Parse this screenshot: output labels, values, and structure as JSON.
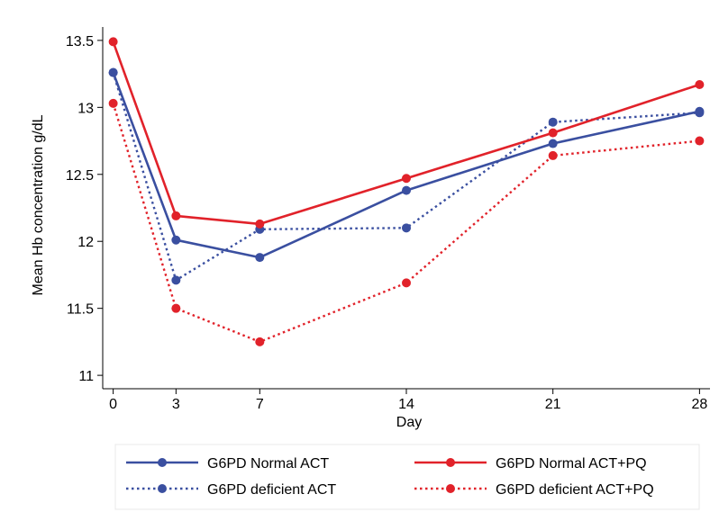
{
  "chart_data": {
    "type": "line",
    "xlabel": "Day",
    "ylabel": "Mean Hb concentration g/dL",
    "x": [
      0,
      3,
      7,
      14,
      21,
      28
    ],
    "xlim": [
      -0.5,
      28.5
    ],
    "ylim": [
      10.9,
      13.6
    ],
    "xticks": [
      "0",
      "3",
      "7",
      "14",
      "21",
      "28"
    ],
    "yticks": [
      "11",
      "11.5",
      "12",
      "12.5",
      "13",
      "13.5"
    ],
    "grid": false,
    "legend_position": "bottom",
    "series": [
      {
        "name": "G6PD Normal ACT",
        "color": "#3a4fa0",
        "dash": "solid",
        "values": [
          13.26,
          12.01,
          11.88,
          12.38,
          12.73,
          12.97
        ]
      },
      {
        "name": "G6PD Normal ACT+PQ",
        "color": "#e1222a",
        "dash": "solid",
        "values": [
          13.49,
          12.19,
          12.13,
          12.47,
          12.81,
          13.17
        ]
      },
      {
        "name": "G6PD deficient ACT",
        "color": "#3a4fa0",
        "dash": "dotted",
        "values": [
          13.26,
          11.71,
          12.09,
          12.1,
          12.89,
          12.96
        ]
      },
      {
        "name": "G6PD deficient ACT+PQ",
        "color": "#e1222a",
        "dash": "dotted",
        "values": [
          13.03,
          11.5,
          11.25,
          11.69,
          12.64,
          12.75
        ]
      }
    ]
  }
}
